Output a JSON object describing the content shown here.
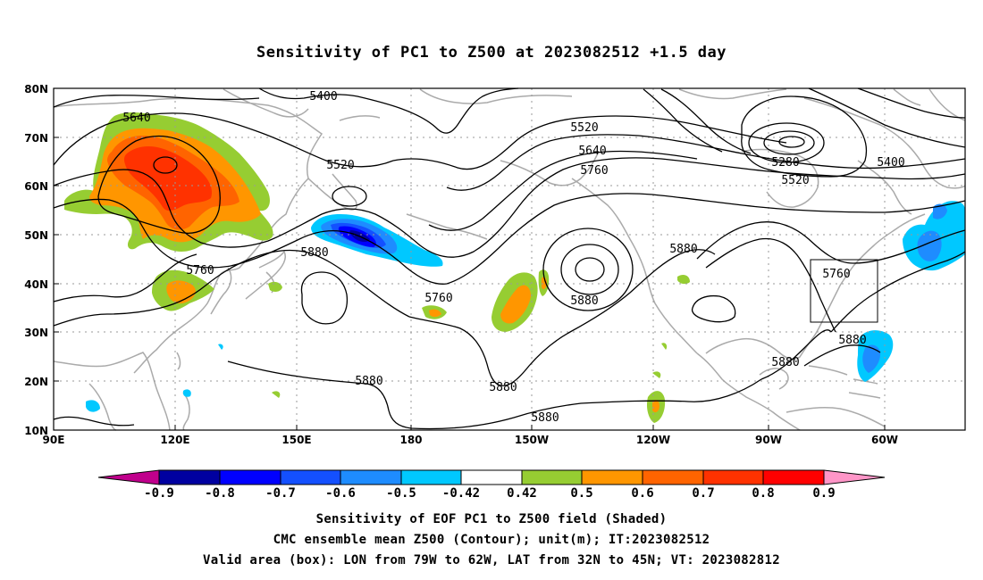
{
  "title": "Sensitivity of PC1 to Z500 at 2023082512 +1.5 day",
  "map": {
    "lat_labels": [
      "80N",
      "70N",
      "60N",
      "50N",
      "40N",
      "30N",
      "20N",
      "10N"
    ],
    "lon_labels": [
      "90E",
      "120E",
      "150E",
      "180",
      "150W",
      "120W",
      "90W",
      "60W"
    ],
    "contour_labels": [
      "5400",
      "5640",
      "5520",
      "5520",
      "5640",
      "5760",
      "5280",
      "5520",
      "5400",
      "5880",
      "5880",
      "5760",
      "5760",
      "5880",
      "5760",
      "5880",
      "5880",
      "5880",
      "5880",
      "5880"
    ],
    "valid_area_box": {
      "lon_from": "79W",
      "lon_to": "62W",
      "lat_from": "32N",
      "lat_to": "45N"
    }
  },
  "colorbar": {
    "labels": [
      "-0.9",
      "-0.8",
      "-0.7",
      "-0.6",
      "-0.5",
      "-0.42",
      "0.42",
      "0.5",
      "0.6",
      "0.7",
      "0.8",
      "0.9"
    ],
    "colors": [
      "#c0008c",
      "#0000a0",
      "#0000ff",
      "#1450ff",
      "#1e8cff",
      "#00c8ff",
      "#ffffff",
      "#96cd32",
      "#ff9600",
      "#ff6400",
      "#ff3200",
      "#ff0000",
      "#ff96c8"
    ]
  },
  "caption": {
    "line1": "Sensitivity of EOF PC1 to Z500 field (Shaded)",
    "line2": "CMC ensemble mean Z500 (Contour); unit(m); IT:2023082512",
    "line3": "Valid area (box): LON from 79W to 62W, LAT from 32N to 45N; VT: 2023082812"
  },
  "colors": {
    "coast": "#aaaaaa",
    "grid": "#999999",
    "contour": "#000000"
  }
}
